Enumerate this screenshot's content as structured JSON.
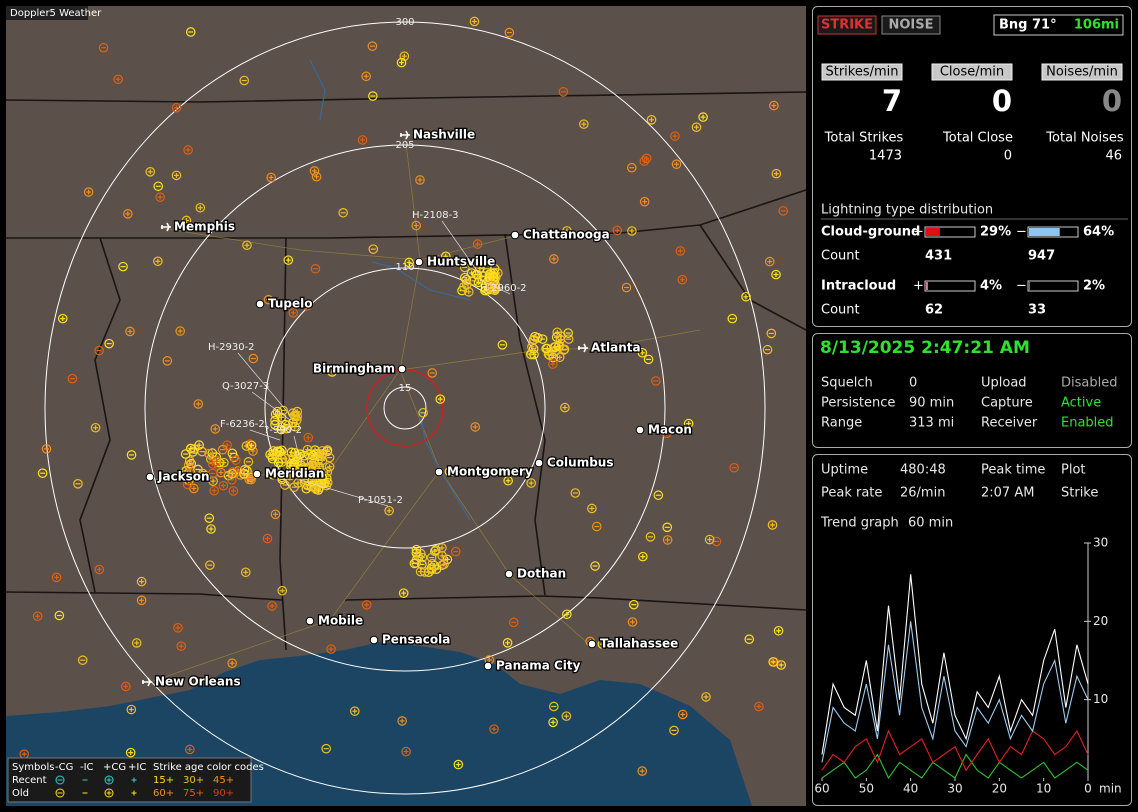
{
  "window_title": "Doppler5 Weather",
  "map": {
    "range_rings": [
      "300",
      "205",
      "110",
      "15"
    ],
    "cities": [
      "Nashville",
      "Memphis",
      "Chattanooga",
      "Huntsville",
      "Tupelo",
      "Atlanta",
      "Birmingham",
      "Macon",
      "Jackson",
      "Meridian",
      "Montgomery",
      "Columbus",
      "Dothan",
      "Mobile",
      "Pensacola",
      "Tallahassee",
      "Panama City",
      "New Orleans"
    ],
    "storm_labels": [
      "H-2108-3",
      "H-2960-2",
      "H-2930-2",
      "Q-3027-3",
      "F-6236-2",
      "?-990-2",
      "P-1051-2"
    ],
    "legend": {
      "symbols_label": "Symbols",
      "symbol_headers": [
        "-CG",
        "-IC",
        "+CG",
        "+IC"
      ],
      "age_header": "Strike age color codes",
      "rows": [
        {
          "label": "Recent",
          "ages": [
            "15+",
            "30+",
            "45+"
          ]
        },
        {
          "label": "Old",
          "ages": [
            "60+",
            "75+",
            "90+"
          ]
        }
      ]
    }
  },
  "status": {
    "strike_button": "STRIKE",
    "noise_button": "NOISE",
    "bearing": "Bng 71°",
    "distance": "106mi",
    "rates": [
      {
        "label": "Strikes/min",
        "value": 7
      },
      {
        "label": "Close/min",
        "value": 0
      },
      {
        "label": "Noises/min",
        "value": 0
      }
    ],
    "totals": [
      {
        "label": "Total Strikes",
        "value": 1473
      },
      {
        "label": "Total Close",
        "value": 0
      },
      {
        "label": "Total Noises",
        "value": 46
      }
    ],
    "distribution": {
      "title": "Lightning type distribution",
      "pos_sign": "+",
      "neg_sign": "−",
      "count_label": "Count",
      "rows": [
        {
          "type": "Cloud-ground",
          "pos": {
            "value": 29,
            "label": "29%"
          },
          "neg": {
            "value": 64,
            "label": "64%"
          },
          "pos_count": 431,
          "neg_count": 947
        },
        {
          "type": "Intracloud",
          "pos": {
            "value": 4,
            "label": "4%"
          },
          "neg": {
            "value": 2,
            "label": "2%"
          },
          "pos_count": 62,
          "neg_count": 33
        }
      ]
    }
  },
  "clock": {
    "datetime": "8/13/2025 2:47:21 AM",
    "rows": [
      [
        "Squelch",
        "0",
        "Upload",
        "Disabled"
      ],
      [
        "Persistence",
        "90 min",
        "Capture",
        "Active"
      ],
      [
        "Range",
        "313 mi",
        "Receiver",
        "Enabled"
      ]
    ]
  },
  "stats": {
    "rows": [
      [
        "Uptime",
        "480:48",
        "Peak time",
        "Plot"
      ],
      [
        "Peak rate",
        "26/min",
        "2:07 AM",
        "Strike"
      ]
    ],
    "trend_label": "Trend graph",
    "trend_window": "60 min"
  },
  "chart_data": {
    "type": "line",
    "xlabel": "min",
    "x": [
      60,
      57.5,
      55,
      52.5,
      50,
      47.5,
      45,
      42.5,
      40,
      37.5,
      35,
      32.5,
      30,
      27.5,
      25,
      22.5,
      20,
      17.5,
      15,
      12.5,
      10,
      7.5,
      5,
      2.5,
      0
    ],
    "xlim": [
      60,
      0
    ],
    "xticks": [
      60,
      50,
      40,
      30,
      20,
      10,
      0
    ],
    "ylim": [
      0,
      30
    ],
    "yticks": [
      10,
      20,
      30
    ],
    "series": [
      {
        "color": "#ffffff",
        "values": [
          3,
          12,
          9,
          8,
          15,
          6,
          22,
          10,
          26,
          12,
          7,
          16,
          8,
          5,
          11,
          9,
          13,
          6,
          10,
          8,
          15,
          19,
          9,
          17,
          12
        ]
      },
      {
        "color": "#9ecbf0",
        "values": [
          2,
          9,
          7,
          6,
          12,
          5,
          17,
          8,
          20,
          9,
          5,
          13,
          6,
          4,
          9,
          7,
          10,
          5,
          8,
          6,
          12,
          15,
          7,
          13,
          10
        ]
      },
      {
        "color": "#e02020",
        "values": [
          1,
          3,
          2,
          4,
          5,
          2,
          6,
          3,
          4,
          5,
          2,
          3,
          4,
          1,
          3,
          5,
          2,
          4,
          3,
          6,
          5,
          3,
          4,
          6,
          3
        ]
      },
      {
        "color": "#30c030",
        "values": [
          0,
          1,
          2,
          0,
          1,
          3,
          0,
          2,
          1,
          0,
          2,
          1,
          0,
          3,
          1,
          0,
          2,
          1,
          0,
          1,
          2,
          0,
          1,
          2,
          1
        ]
      }
    ]
  }
}
